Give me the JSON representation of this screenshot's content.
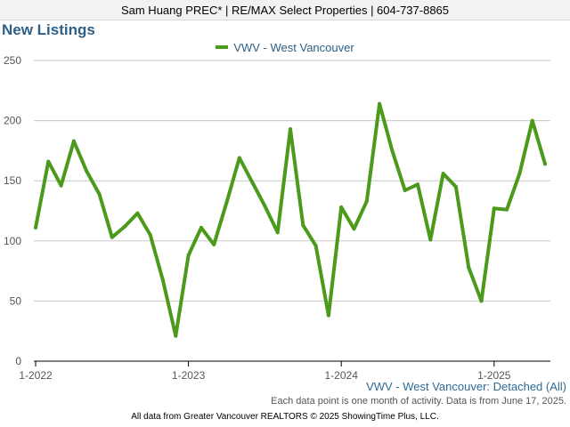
{
  "header": {
    "banner": "Sam Huang PREC* | RE/MAX Select Properties | 604-737-8865"
  },
  "chart_data": {
    "type": "line",
    "title": "New Listings",
    "xlabel": "",
    "ylabel": "",
    "ylim": [
      0,
      250
    ],
    "yticks": [
      0,
      50,
      100,
      150,
      200,
      250
    ],
    "xticks": [
      "1-2022",
      "1-2023",
      "1-2024",
      "1-2025"
    ],
    "xtick_indices": [
      0,
      12,
      24,
      36
    ],
    "grid": true,
    "legend_position": "top-center",
    "series": [
      {
        "name": "VWV - West Vancouver",
        "color": "#4c9a1c",
        "x": [
          "1-2022",
          "2-2022",
          "3-2022",
          "4-2022",
          "5-2022",
          "6-2022",
          "7-2022",
          "8-2022",
          "9-2022",
          "10-2022",
          "11-2022",
          "12-2022",
          "1-2023",
          "2-2023",
          "3-2023",
          "4-2023",
          "5-2023",
          "6-2023",
          "7-2023",
          "8-2023",
          "9-2023",
          "10-2023",
          "11-2023",
          "12-2023",
          "1-2024",
          "2-2024",
          "3-2024",
          "4-2024",
          "5-2024",
          "6-2024",
          "7-2024",
          "8-2024",
          "9-2024",
          "10-2024",
          "11-2024",
          "12-2024",
          "1-2025",
          "2-2025",
          "3-2025",
          "4-2025",
          "5-2025"
        ],
        "values": [
          111,
          166,
          146,
          183,
          158,
          139,
          103,
          112,
          123,
          105,
          67,
          21,
          88,
          111,
          97,
          132,
          169,
          149,
          129,
          107,
          193,
          113,
          96,
          38,
          128,
          110,
          133,
          214,
          175,
          142,
          147,
          101,
          156,
          145,
          78,
          50,
          127,
          126,
          156,
          200,
          164
        ]
      }
    ],
    "subtitle": "VWV - West Vancouver: Detached (All)",
    "note": "Each data point is one month of activity. Data is from June 17, 2025."
  },
  "footer": {
    "credit": "All data from Greater Vancouver REALTORS © 2025 ShowingTime Plus, LLC."
  }
}
